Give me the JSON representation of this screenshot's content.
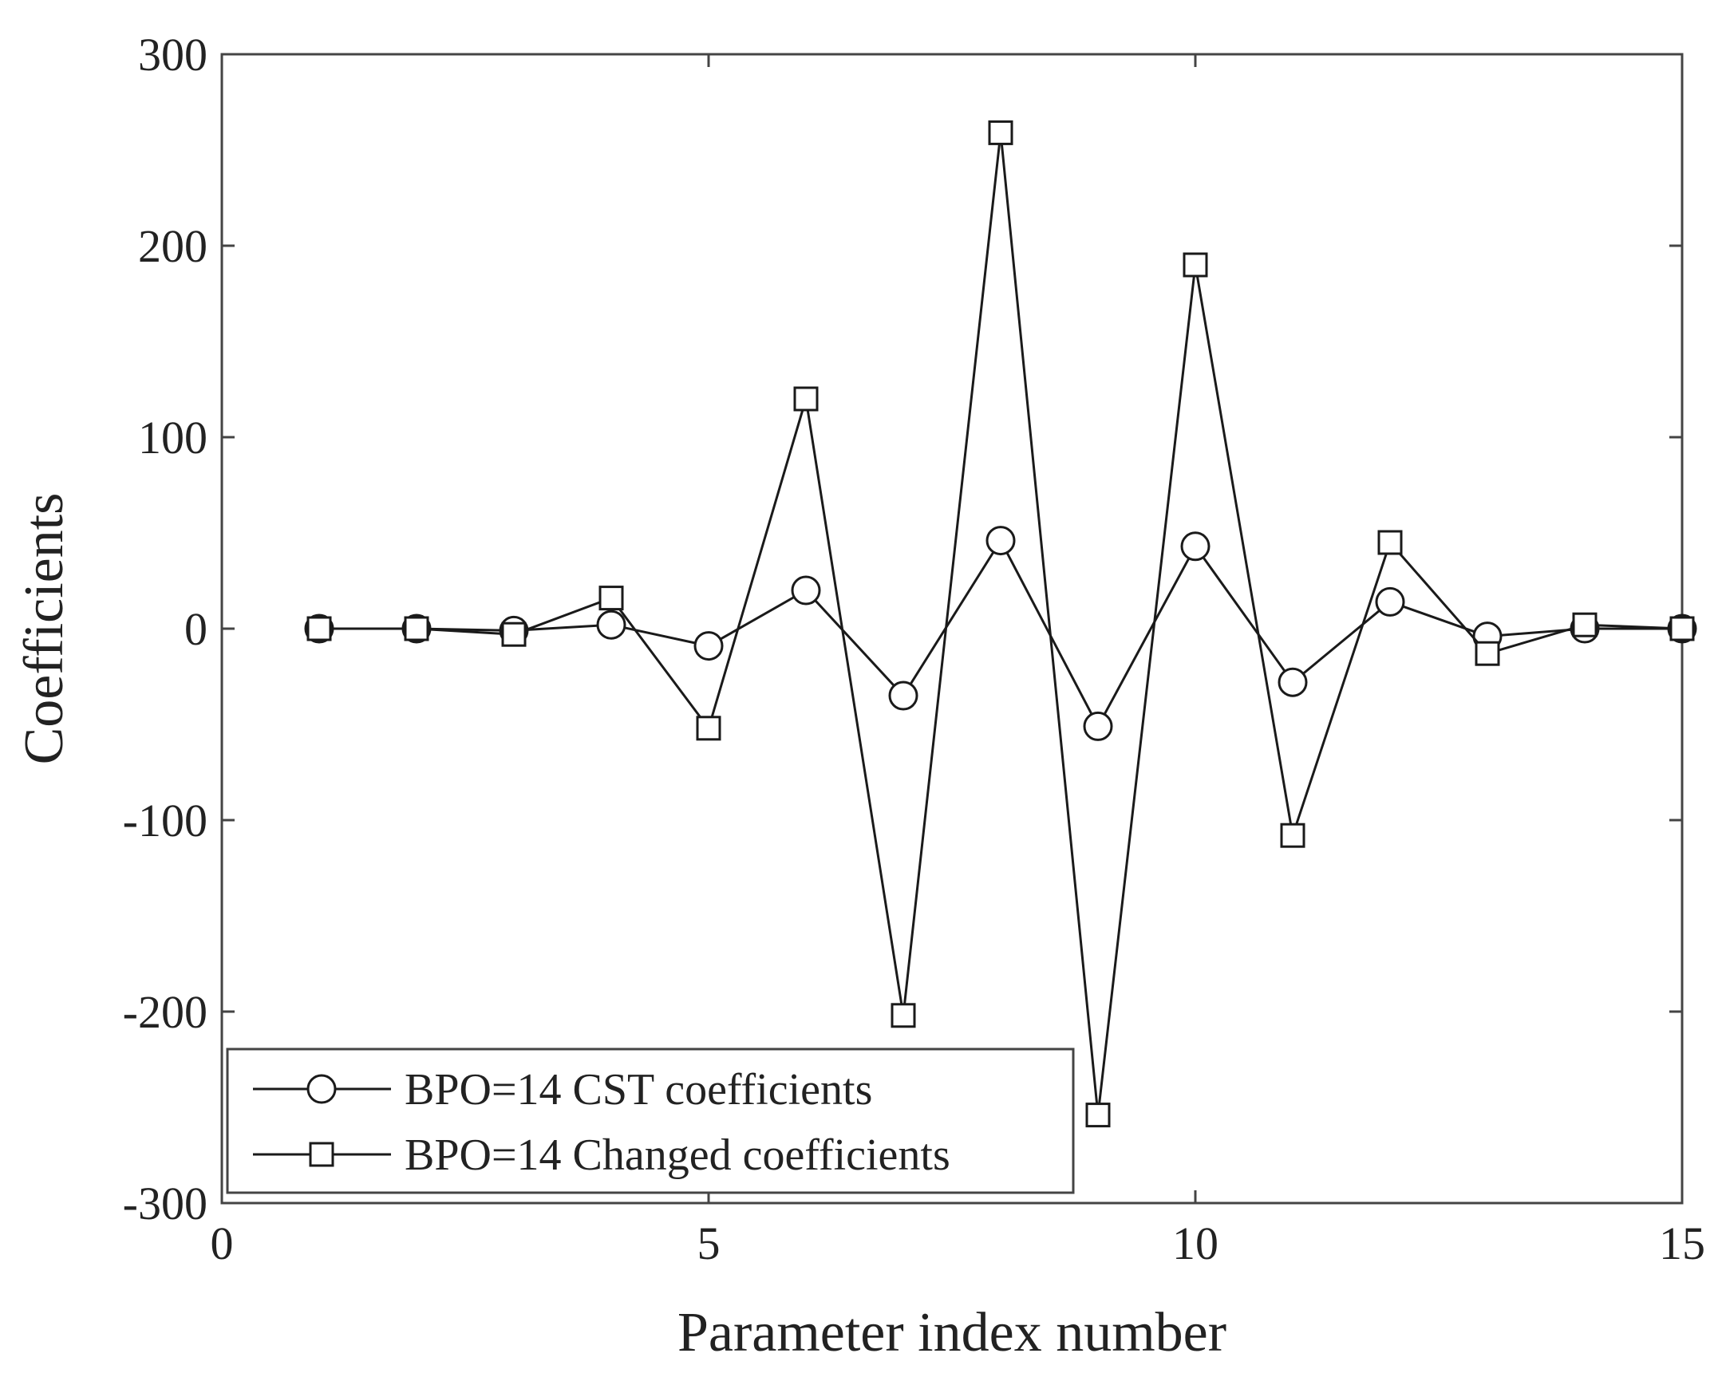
{
  "chart_data": {
    "type": "line",
    "title": "",
    "xlabel": "Parameter index number",
    "ylabel": "Coefficients",
    "xlim": [
      0,
      15
    ],
    "ylim": [
      -300,
      300
    ],
    "xticks": [
      0,
      5,
      10,
      15
    ],
    "yticks": [
      300,
      200,
      100,
      0,
      -100,
      -200,
      -300
    ],
    "xtick_labels": [
      "0",
      "5",
      "10",
      "15"
    ],
    "ytick_labels": [
      "300",
      "200",
      "100",
      "0",
      "-100",
      "-200",
      "-300"
    ],
    "grid": false,
    "legend_position": "bottom-left",
    "x": [
      1,
      2,
      3,
      4,
      5,
      6,
      7,
      8,
      9,
      10,
      11,
      12,
      13,
      14,
      15
    ],
    "series": [
      {
        "name": "BPO=14 CST coefficients",
        "marker": "circle",
        "color": "#1a1a1a",
        "values": [
          0,
          0,
          -1,
          2,
          -9,
          20,
          -35,
          46,
          -51,
          43,
          -28,
          14,
          -4,
          0,
          0
        ]
      },
      {
        "name": "BPO=14 Changed coefficients",
        "marker": "square",
        "color": "#1a1a1a",
        "values": [
          0,
          0,
          -3,
          16,
          -52,
          120,
          -202,
          259,
          -254,
          190,
          -108,
          45,
          -13,
          2,
          0
        ]
      }
    ]
  }
}
